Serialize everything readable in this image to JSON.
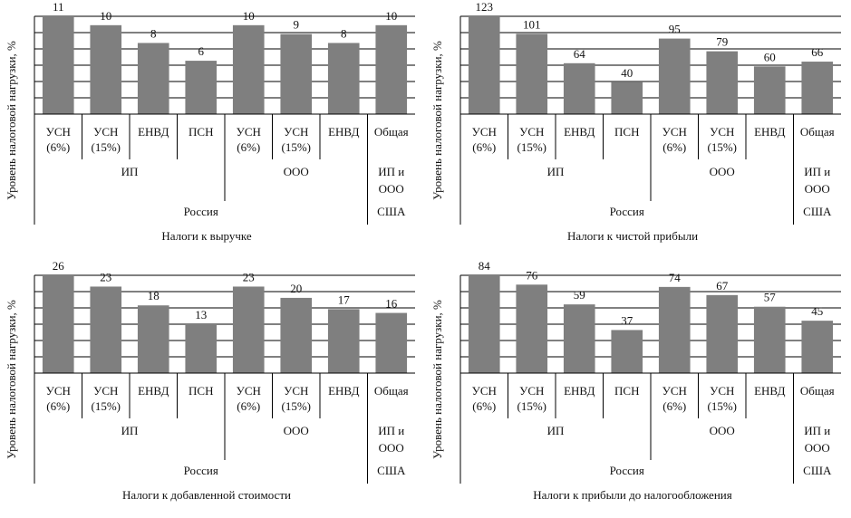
{
  "shared": {
    "ylabel": "Уровень налоговой нагрузки, %",
    "groups": [
      {
        "name": "ИП",
        "span": [
          0,
          3
        ]
      },
      {
        "name": "ООО",
        "span": [
          4,
          6
        ]
      },
      {
        "name": "ИП и\nООО",
        "span": [
          7,
          7
        ]
      }
    ],
    "countries": [
      {
        "name": "Россия",
        "span": [
          0,
          6
        ]
      },
      {
        "name": "США",
        "span": [
          7,
          7
        ]
      }
    ],
    "bar_color": "#7f7f7f"
  },
  "chart_data": [
    {
      "type": "bar",
      "title": "Налоги к выручке",
      "ylabel": "Уровень налоговой нагрузки, %",
      "categories": [
        "УСН\n(6%)",
        "УСН\n(15%)",
        "ЕНВД",
        "ПСН",
        "УСН\n(6%)",
        "УСН\n(15%)",
        "ЕНВД",
        "Общая"
      ],
      "values": [
        11,
        10,
        8,
        6,
        10,
        9,
        8,
        10
      ],
      "ylim": [
        0,
        11
      ]
    },
    {
      "type": "bar",
      "title": "Налоги к чистой прибыли",
      "ylabel": "Уровень налоговой нагрузки, %",
      "categories": [
        "УСН\n(6%)",
        "УСН\n(15%)",
        "ЕНВД",
        "ПСН",
        "УСН\n(6%)",
        "УСН\n(15%)",
        "ЕНВД",
        "Общая"
      ],
      "values": [
        123,
        101,
        64,
        40,
        95,
        79,
        60,
        66
      ],
      "ylim": [
        0,
        123
      ]
    },
    {
      "type": "bar",
      "title": "Налоги к добавленной стоимости",
      "ylabel": "Уровень налоговой нагрузки, %",
      "categories": [
        "УСН\n(6%)",
        "УСН\n(15%)",
        "ЕНВД",
        "ПСН",
        "УСН\n(6%)",
        "УСН\n(15%)",
        "ЕНВД",
        "Общая"
      ],
      "values": [
        26,
        23,
        18,
        13,
        23,
        20,
        17,
        16
      ],
      "ylim": [
        0,
        26
      ]
    },
    {
      "type": "bar",
      "title": "Налоги к прибыли  до налогообложения",
      "ylabel": "Уровень налоговой нагрузки, %",
      "categories": [
        "УСН\n(6%)",
        "УСН\n(15%)",
        "ЕНВД",
        "ПСН",
        "УСН\n(6%)",
        "УСН\n(15%)",
        "ЕНВД",
        "Общая"
      ],
      "values": [
        84,
        76,
        59,
        37,
        74,
        67,
        57,
        45
      ],
      "ylim": [
        0,
        84
      ]
    }
  ]
}
